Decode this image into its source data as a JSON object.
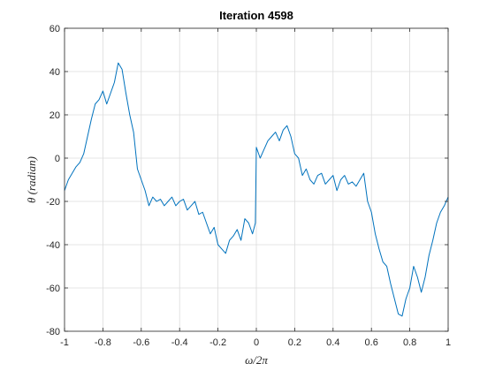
{
  "chart_data": {
    "type": "line",
    "title": "Iteration 4598",
    "xlabel": "ω/2π",
    "ylabel": "θ (radian)",
    "xlim": [
      -1,
      1
    ],
    "ylim": [
      -80,
      60
    ],
    "grid": true,
    "xticks": [
      -1,
      -0.8,
      -0.6,
      -0.4,
      -0.2,
      0,
      0.2,
      0.4,
      0.6,
      0.8,
      1
    ],
    "xtick_labels": [
      "-1",
      "-0.8",
      "-0.6",
      "-0.4",
      "-0.2",
      "0",
      "0.2",
      "0.4",
      "0.6",
      "0.8",
      "1"
    ],
    "yticks": [
      -80,
      -60,
      -40,
      -20,
      0,
      20,
      40,
      60
    ],
    "ytick_labels": [
      "-80",
      "-60",
      "-40",
      "-20",
      "0",
      "20",
      "40",
      "60"
    ],
    "series": [
      {
        "color": "#0072BD",
        "x": [
          -1.0,
          -0.98,
          -0.96,
          -0.94,
          -0.92,
          -0.9,
          -0.88,
          -0.86,
          -0.84,
          -0.82,
          -0.8,
          -0.78,
          -0.76,
          -0.74,
          -0.72,
          -0.7,
          -0.68,
          -0.66,
          -0.64,
          -0.62,
          -0.6,
          -0.58,
          -0.56,
          -0.54,
          -0.52,
          -0.5,
          -0.48,
          -0.46,
          -0.44,
          -0.42,
          -0.4,
          -0.38,
          -0.36,
          -0.34,
          -0.32,
          -0.3,
          -0.28,
          -0.26,
          -0.24,
          -0.22,
          -0.2,
          -0.18,
          -0.16,
          -0.14,
          -0.12,
          -0.1,
          -0.08,
          -0.06,
          -0.04,
          -0.02,
          -0.005,
          0.0,
          0.02,
          0.04,
          0.06,
          0.08,
          0.1,
          0.12,
          0.14,
          0.16,
          0.18,
          0.2,
          0.22,
          0.24,
          0.26,
          0.28,
          0.3,
          0.32,
          0.34,
          0.36,
          0.38,
          0.4,
          0.42,
          0.44,
          0.46,
          0.48,
          0.5,
          0.52,
          0.54,
          0.56,
          0.58,
          0.6,
          0.62,
          0.64,
          0.66,
          0.68,
          0.7,
          0.72,
          0.74,
          0.76,
          0.78,
          0.8,
          0.82,
          0.84,
          0.86,
          0.88,
          0.9,
          0.92,
          0.94,
          0.96,
          0.98,
          1.0
        ],
        "y": [
          -15,
          -10,
          -7,
          -4,
          -2,
          2,
          10,
          18,
          25,
          27,
          31,
          25,
          30,
          35,
          44,
          41,
          30,
          20,
          12,
          -5,
          -10,
          -15,
          -22,
          -18,
          -20,
          -19,
          -22,
          -20,
          -18,
          -22,
          -20,
          -19,
          -24,
          -22,
          -20,
          -26,
          -25,
          -30,
          -35,
          -32,
          -40,
          -42,
          -44,
          -38,
          -36,
          -33,
          -38,
          -28,
          -30,
          -35,
          -30,
          5,
          0,
          4,
          8,
          10,
          12,
          8,
          13,
          15,
          10,
          2,
          0,
          -8,
          -5,
          -10,
          -12,
          -8,
          -7,
          -12,
          -10,
          -8,
          -15,
          -10,
          -8,
          -12,
          -11,
          -13,
          -10,
          -7,
          -20,
          -25,
          -35,
          -42,
          -48,
          -50,
          -58,
          -65,
          -72,
          -73,
          -65,
          -60,
          -50,
          -55,
          -62,
          -55,
          -45,
          -38,
          -30,
          -25,
          -22,
          -18
        ]
      }
    ]
  }
}
